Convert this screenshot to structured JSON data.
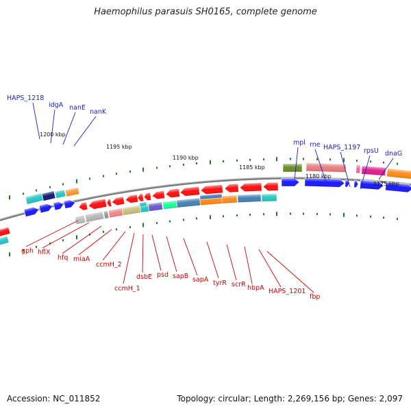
{
  "title": "Haemophilus parasuis SH0165, complete genome",
  "footer": {
    "accession": "Accession: NC_011852",
    "summary": "Topology: circular; Length: 2,269,156 bp; Genes: 2,097"
  },
  "colors": {
    "forward_label": "#1a1acc",
    "reverse_label": "#cc0000",
    "backbone": "#777777",
    "tick": "#1f7a1f"
  },
  "ruler": {
    "labels": [
      "1200 kbp",
      "1195 kbp",
      "1190 kbp",
      "1185 kbp",
      "1180 kbp",
      "1175 kbp"
    ]
  },
  "genes_forward": [
    "HAPS_1218",
    "idgA",
    "nanE",
    "nanK",
    "mpl",
    "rne",
    "HAPS_1197",
    "rpsU",
    "dnaG"
  ],
  "genes_reverse": [
    "gph",
    "hflX",
    "hfq",
    "miaA",
    "ccmH_2",
    "ccmH_1",
    "dsbE",
    "psd",
    "sapB",
    "sapA",
    "tyrR",
    "scrR",
    "hbpA",
    "HAPS_1201",
    "fbp"
  ]
}
